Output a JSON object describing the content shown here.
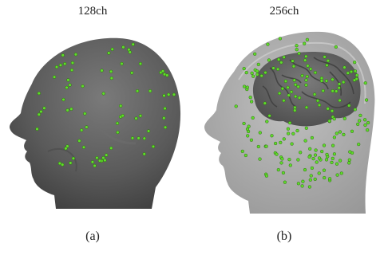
{
  "panel_a": {
    "top_label": "128ch",
    "bottom_label": "(a)"
  },
  "panel_b": {
    "top_label": "256ch",
    "bottom_label": "(b)"
  },
  "colors": {
    "electrode": "#5fdc2a",
    "head_dark": "#5c5c5c",
    "head_light": "#a9a9a9",
    "brain": "#5f5f5f"
  }
}
